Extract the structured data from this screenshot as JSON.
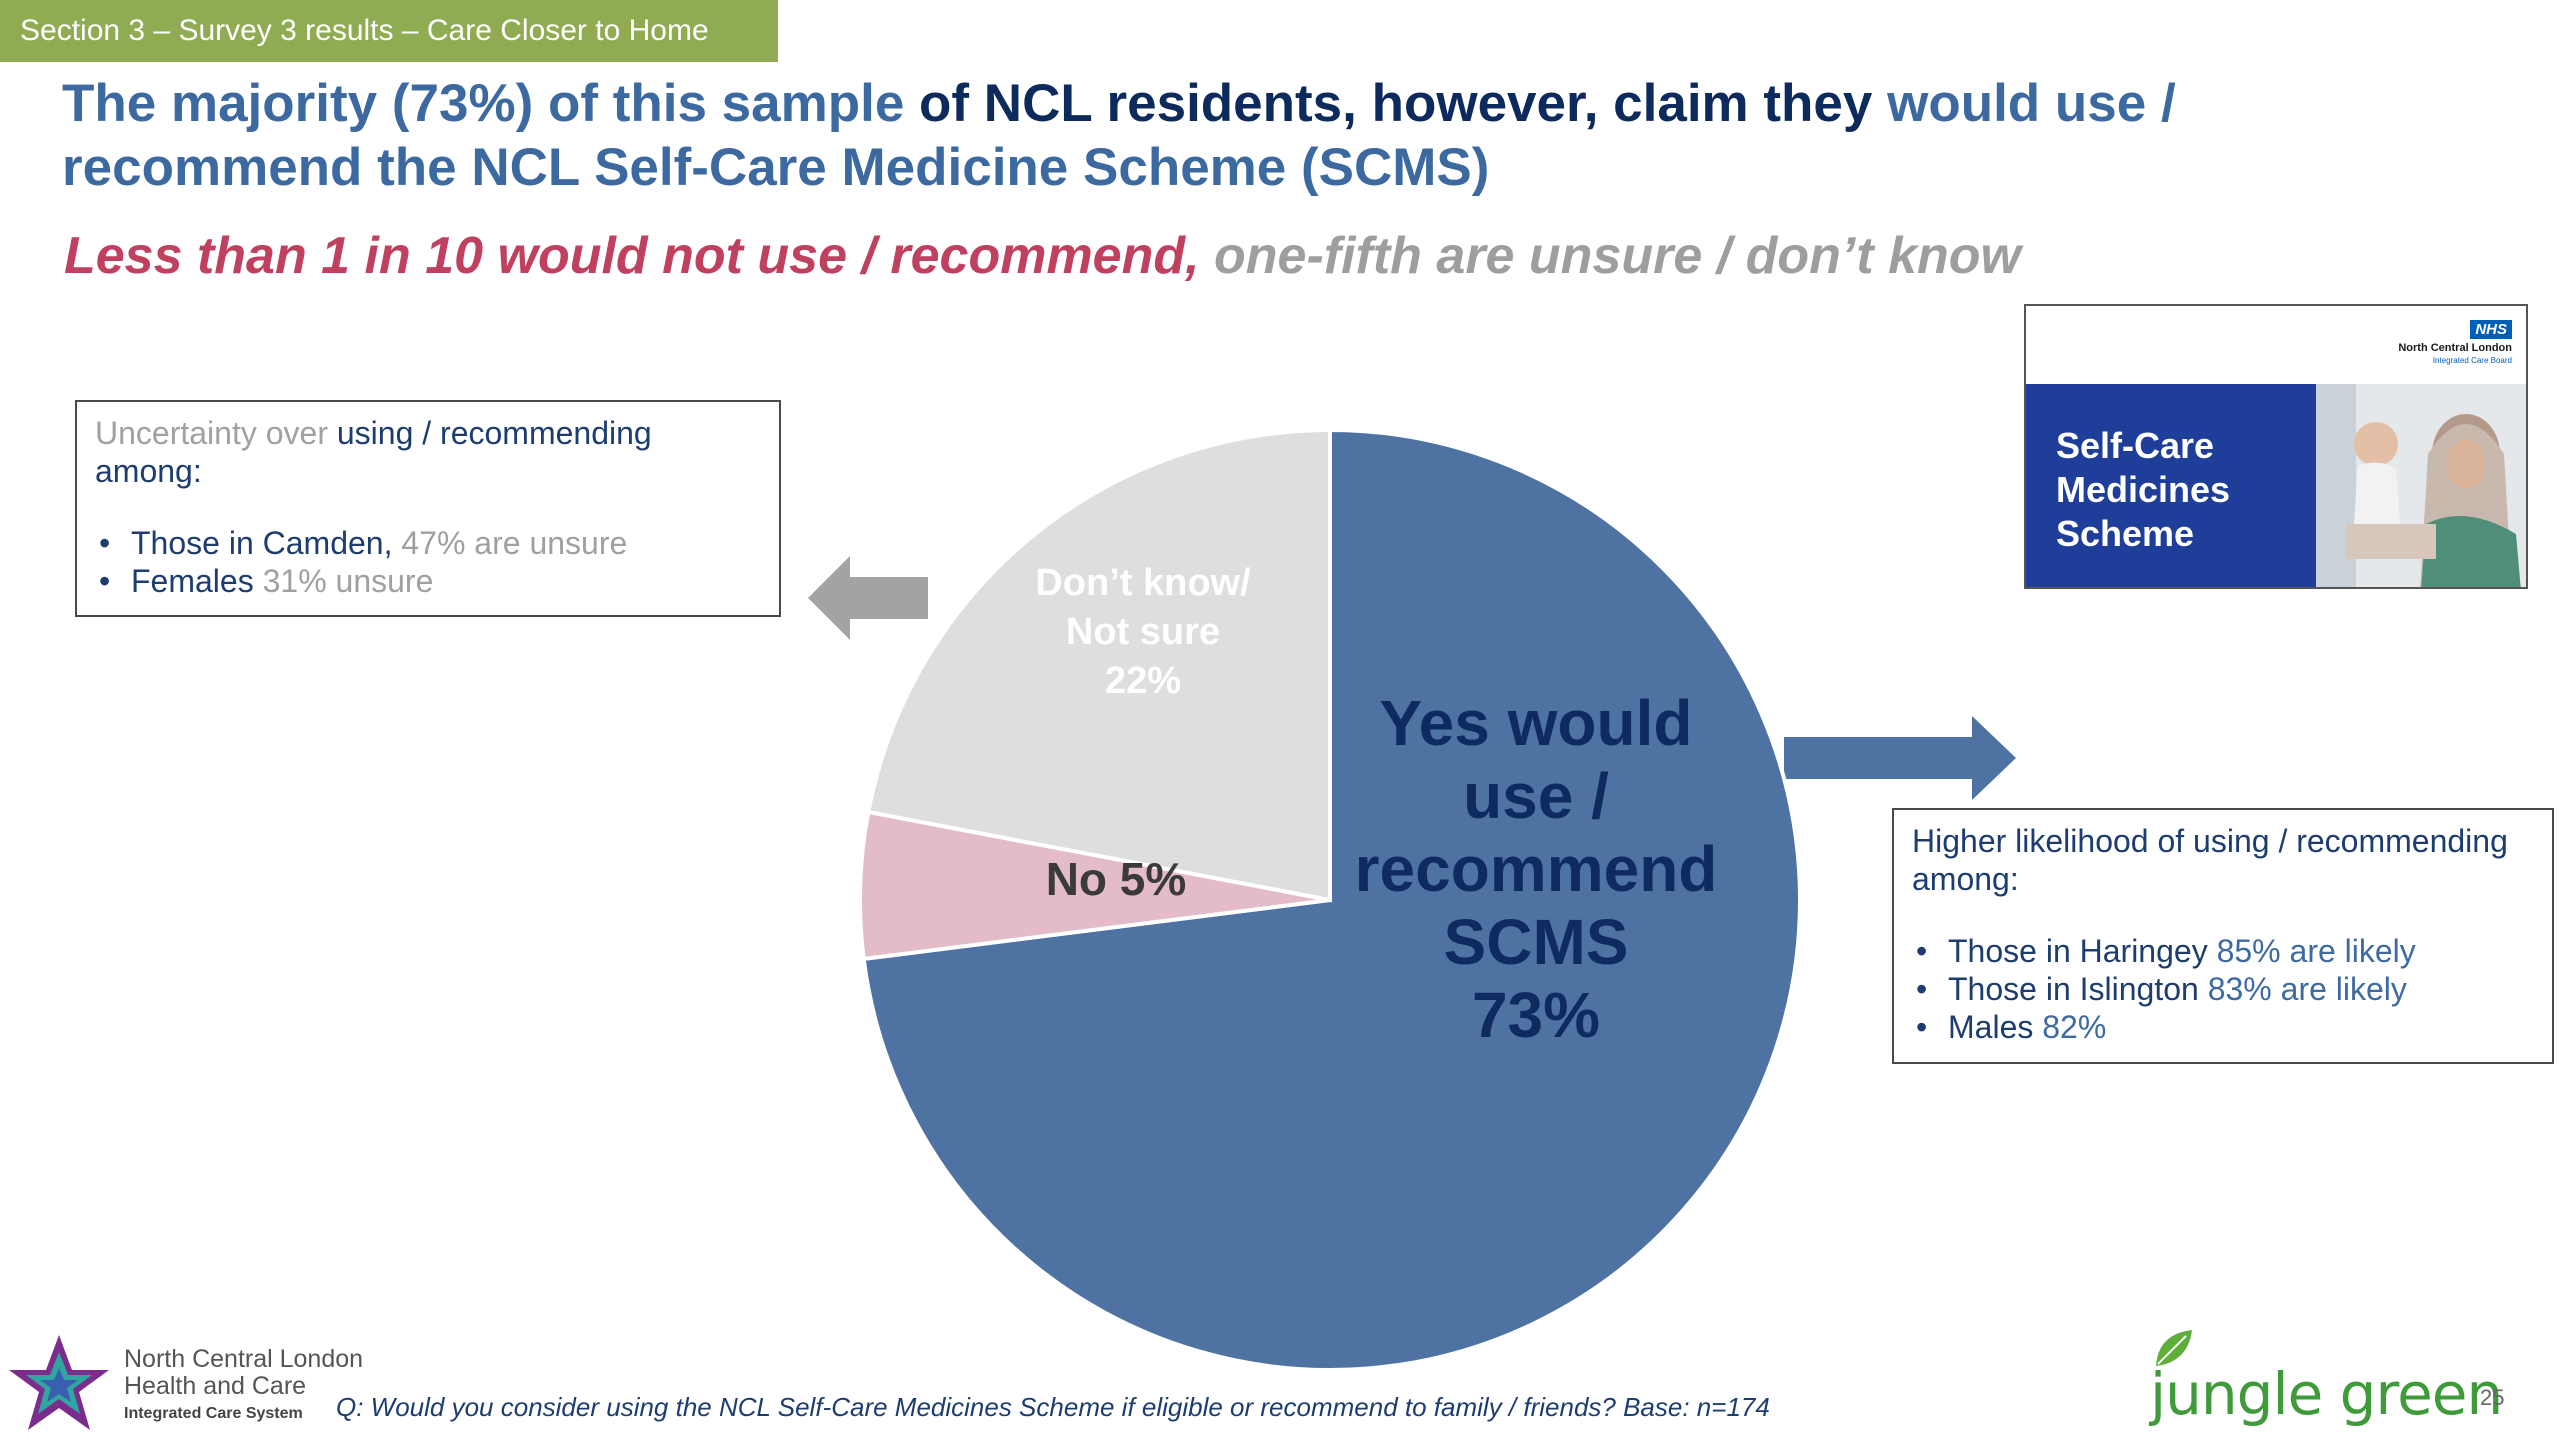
{
  "section_tag": "Section 3 – Survey 3 results – Care Closer to Home",
  "headline": {
    "part1": "The majority (73%) of this sample ",
    "part2": "of NCL residents, however, claim they ",
    "part3": "would use / recommend the NCL Self-Care Medicine Scheme (SCMS)"
  },
  "subhead": {
    "red": "Less than 1 in 10 would not use / recommend,",
    "grey": " one-fifth are unsure / don’t know"
  },
  "left_box": {
    "intro_grey": "Uncertainty over ",
    "intro_dark": "using / recommending among:",
    "items": [
      {
        "dark": "Those in Camden, ",
        "grey": "47% are unsure"
      },
      {
        "dark": "Females ",
        "grey": "31% unsure"
      }
    ]
  },
  "right_box": {
    "intro": "Higher likelihood of using / recommending among:",
    "items": [
      {
        "dark": "Those in Haringey ",
        "blue": "85% are likely"
      },
      {
        "dark": "Those in Islington ",
        "blue": "83% are likely"
      },
      {
        "dark": "Males ",
        "blue": "82%"
      }
    ]
  },
  "thumbnail": {
    "nhs": "NHS",
    "org": "North Central London",
    "org_sub": "Integrated Care Board",
    "title": "Self-Care Medicines Scheme"
  },
  "chart_data": {
    "type": "pie",
    "start": "12 o'clock, clockwise",
    "slices": [
      {
        "label_lines": [
          "Yes would",
          "use /",
          "recommend",
          "SCMS",
          "73%"
        ],
        "value": 73,
        "color": "#4e73a2",
        "text_color": "#0e2a5e"
      },
      {
        "label_lines": [
          "No 5%"
        ],
        "value": 5,
        "color": "#e3bcc8",
        "text_color": "#3a3a3a"
      },
      {
        "label_lines": [
          "Don’t know/",
          "Not sure",
          "22%"
        ],
        "value": 22,
        "color": "#dedede",
        "text_color": "#ffffff"
      }
    ]
  },
  "footer": {
    "question": "Q: Would you consider using the NCL Self-Care Medicines Scheme if eligible or recommend to family / friends?  Base: n=174",
    "ncl_line1": "North Central London",
    "ncl_line2": "Health and Care",
    "ncl_line3": "Integrated Care System",
    "brand": "jungle green",
    "page_number": "25"
  },
  "colors": {
    "section_green": "#8fac53",
    "headline_blue": "#3c6aa0",
    "navy": "#0d2a5c",
    "red": "#c0405f",
    "grey": "#9e9e9e"
  }
}
